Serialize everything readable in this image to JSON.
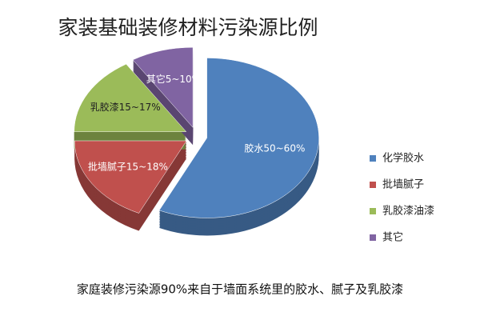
{
  "chart_data": {
    "type": "pie",
    "title": "家装基础装修材料污染源比例",
    "categories": [
      "化学胶水",
      "批墙腻子",
      "乳胶漆油漆",
      "其它"
    ],
    "values": [
      57,
      18,
      16,
      9
    ],
    "slice_labels": [
      "胶水50~60%",
      "批墙腻子15~18%",
      "乳胶漆15~17%",
      "其它5~10%"
    ],
    "colors": [
      "#4f81bd",
      "#c0504d",
      "#9bbb59",
      "#8064a2"
    ],
    "legend": "right",
    "footnote": "家庭装修污染源90%来自于墙面系统里的胶水、腻子及乳胶漆"
  }
}
